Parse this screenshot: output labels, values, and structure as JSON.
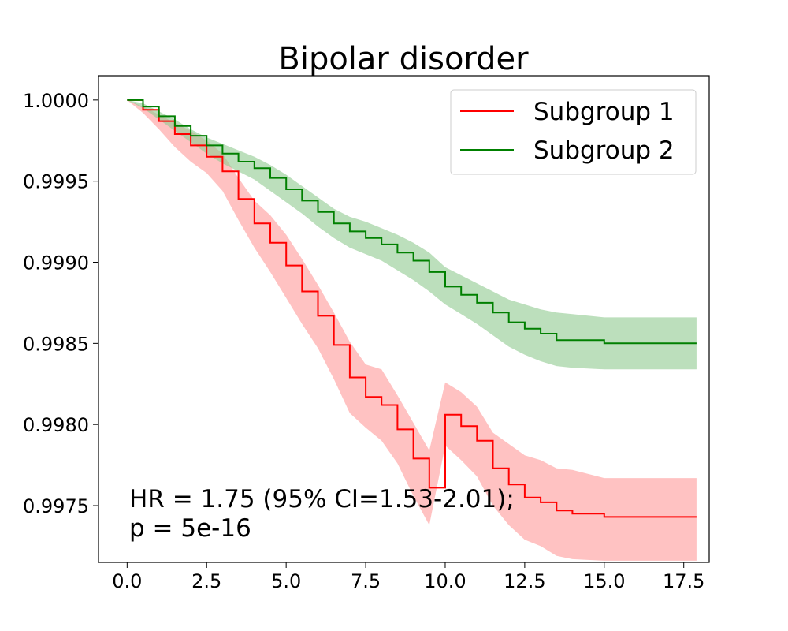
{
  "chart_data": {
    "type": "line",
    "title": "Bipolar disorder",
    "xlabel": "",
    "ylabel": "",
    "xlim": [
      -0.9,
      18.3
    ],
    "ylim": [
      0.99715,
      1.00015
    ],
    "x_ticks": [
      0.0,
      2.5,
      5.0,
      7.5,
      10.0,
      12.5,
      15.0,
      17.5
    ],
    "x_tick_labels": [
      "0.0",
      "2.5",
      "5.0",
      "7.5",
      "10.0",
      "12.5",
      "15.0",
      "17.5"
    ],
    "y_ticks": [
      0.9975,
      0.998,
      0.9985,
      0.999,
      0.9995,
      1.0
    ],
    "y_tick_labels": [
      "0.9975",
      "0.9980",
      "0.9985",
      "0.9990",
      "0.9995",
      "1.0000"
    ],
    "grid": false,
    "legend_position": "top-right",
    "series": [
      {
        "name": "Subgroup 1",
        "color": "#ff0000",
        "band_color": "#ff9999",
        "x": [
          0.0,
          0.5,
          1.0,
          1.5,
          2.0,
          2.5,
          3.0,
          3.5,
          4.0,
          4.5,
          5.0,
          5.5,
          6.0,
          6.5,
          7.0,
          7.5,
          8.0,
          8.5,
          9.0,
          9.5,
          10.0,
          10.5,
          11.0,
          11.5,
          12.0,
          12.5,
          13.0,
          13.5,
          14.0,
          15.0,
          16.0,
          17.0,
          17.9
        ],
        "y": [
          1.0,
          0.99994,
          0.99987,
          0.99979,
          0.99972,
          0.99965,
          0.99956,
          0.99939,
          0.99924,
          0.99912,
          0.99898,
          0.99882,
          0.99867,
          0.99849,
          0.99829,
          0.99817,
          0.99812,
          0.99797,
          0.99779,
          0.99761,
          0.99806,
          0.99799,
          0.9979,
          0.99773,
          0.99763,
          0.99755,
          0.99752,
          0.99747,
          0.99745,
          0.99743,
          0.99743,
          0.99743,
          0.99743
        ],
        "lower": [
          1.0,
          0.99992,
          0.99982,
          0.99971,
          0.99962,
          0.99955,
          0.99944,
          0.99926,
          0.99909,
          0.99894,
          0.99878,
          0.99862,
          0.99847,
          0.99828,
          0.99807,
          0.99798,
          0.9979,
          0.99776,
          0.99756,
          0.99738,
          0.99787,
          0.99778,
          0.99768,
          0.9975,
          0.99738,
          0.99729,
          0.99725,
          0.99719,
          0.99717,
          0.99716,
          0.99716,
          0.99716,
          0.99716
        ],
        "upper": [
          1.0,
          0.99996,
          0.99991,
          0.99986,
          0.99981,
          0.99975,
          0.99967,
          0.99952,
          0.99938,
          0.99929,
          0.99917,
          0.99902,
          0.99886,
          0.99869,
          0.99851,
          0.99837,
          0.99834,
          0.99818,
          0.99801,
          0.99784,
          0.99826,
          0.9982,
          0.99811,
          0.99795,
          0.99788,
          0.99781,
          0.99778,
          0.99773,
          0.99772,
          0.99767,
          0.99767,
          0.99767,
          0.99767
        ]
      },
      {
        "name": "Subgroup 2",
        "color": "#008000",
        "band_color": "#8fc98f",
        "x": [
          0.0,
          0.5,
          1.0,
          1.5,
          2.0,
          2.5,
          3.0,
          3.5,
          4.0,
          4.5,
          5.0,
          5.5,
          6.0,
          6.5,
          7.0,
          7.5,
          8.0,
          8.5,
          9.0,
          9.5,
          10.0,
          10.5,
          11.0,
          11.5,
          12.0,
          12.5,
          13.0,
          13.5,
          14.0,
          15.0,
          16.0,
          17.0,
          17.9
        ],
        "y": [
          1.0,
          0.99996,
          0.9999,
          0.99984,
          0.99978,
          0.99972,
          0.99967,
          0.99962,
          0.99958,
          0.99952,
          0.99945,
          0.99938,
          0.99931,
          0.99924,
          0.99919,
          0.99915,
          0.99911,
          0.99906,
          0.99901,
          0.99894,
          0.99885,
          0.9988,
          0.99875,
          0.99869,
          0.99863,
          0.99859,
          0.99856,
          0.99852,
          0.99852,
          0.9985,
          0.9985,
          0.9985,
          0.9985
        ],
        "lower": [
          1.0,
          0.99995,
          0.99988,
          0.99981,
          0.99974,
          0.99967,
          0.99961,
          0.99956,
          0.99951,
          0.99944,
          0.99937,
          0.9993,
          0.99922,
          0.99915,
          0.99909,
          0.99905,
          0.99901,
          0.99895,
          0.99889,
          0.99882,
          0.99874,
          0.99868,
          0.99862,
          0.99855,
          0.99848,
          0.99843,
          0.99839,
          0.99836,
          0.99835,
          0.99834,
          0.99834,
          0.99834,
          0.99834
        ],
        "upper": [
          1.0,
          0.99998,
          0.99993,
          0.99988,
          0.99982,
          0.99977,
          0.99973,
          0.99969,
          0.99965,
          0.9996,
          0.99954,
          0.99947,
          0.9994,
          0.99933,
          0.99928,
          0.99925,
          0.99921,
          0.99917,
          0.99912,
          0.99906,
          0.99897,
          0.99892,
          0.99887,
          0.99882,
          0.99877,
          0.99874,
          0.99871,
          0.99869,
          0.99868,
          0.99866,
          0.99866,
          0.99866,
          0.99866
        ]
      }
    ],
    "annotations": [
      "HR = 1.75 (95% CI=1.53-2.01);",
      "p = 5e-16"
    ]
  }
}
